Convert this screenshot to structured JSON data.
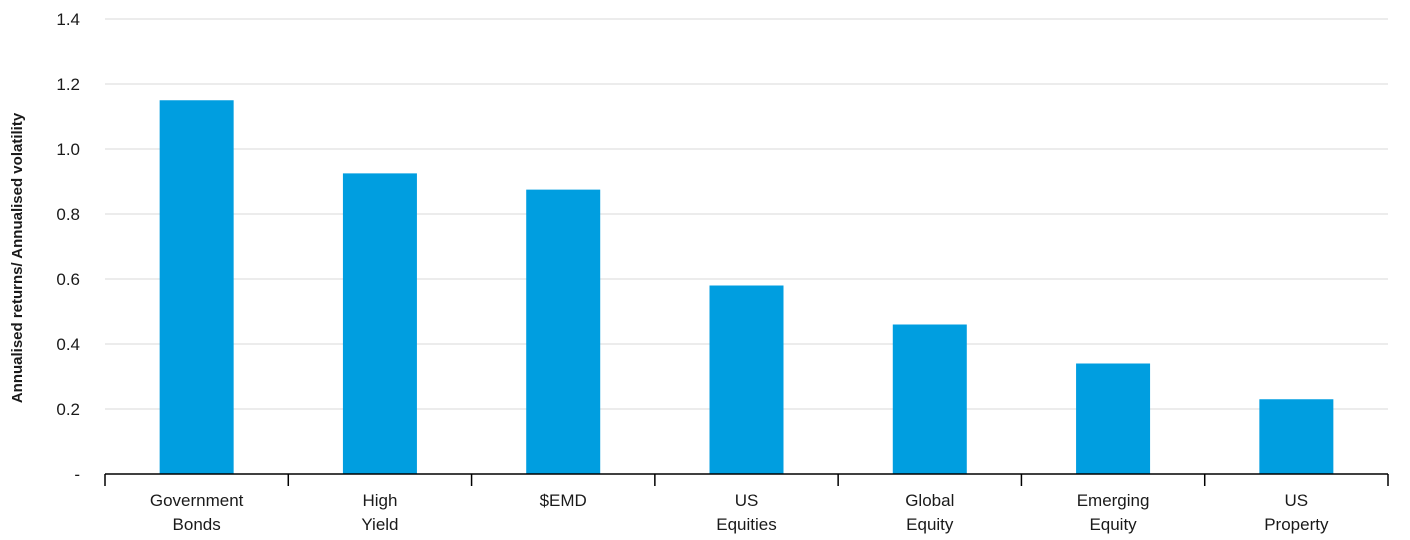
{
  "chart_data": {
    "type": "bar",
    "categories": [
      [
        "Government",
        "Bonds"
      ],
      [
        "High",
        "Yield"
      ],
      [
        "$EMD"
      ],
      [
        "US",
        "Equities"
      ],
      [
        "Global",
        "Equity"
      ],
      [
        "Emerging",
        "Equity"
      ],
      [
        "US",
        "Property"
      ]
    ],
    "values": [
      1.15,
      0.925,
      0.875,
      0.58,
      0.46,
      0.34,
      0.23
    ],
    "ylabel": "Annualised returns/ Annualised volatility",
    "ylim": [
      0,
      1.4
    ],
    "yticks": [
      {
        "value": 0,
        "label": "-"
      },
      {
        "value": 0.2,
        "label": "0.2"
      },
      {
        "value": 0.4,
        "label": "0.4"
      },
      {
        "value": 0.6,
        "label": "0.6"
      },
      {
        "value": 0.8,
        "label": "0.8"
      },
      {
        "value": 1.0,
        "label": "1.0"
      },
      {
        "value": 1.2,
        "label": "1.2"
      },
      {
        "value": 1.4,
        "label": "1.4"
      }
    ],
    "grid": true,
    "bar_color": "#009ee0"
  }
}
